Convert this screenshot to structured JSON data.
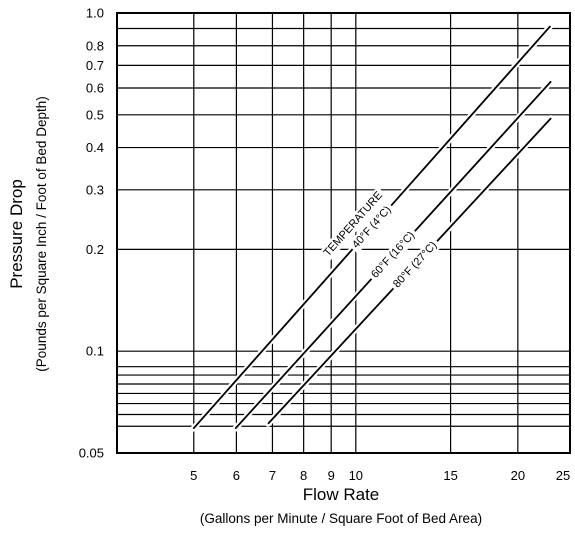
{
  "chart_data": {
    "type": "line",
    "xscale": "log",
    "yscale": "log",
    "xlim": [
      3.6,
      25
    ],
    "ylim": [
      0.05,
      1.0
    ],
    "x_ticks": [
      5,
      6,
      7,
      8,
      9,
      10,
      15,
      20,
      25
    ],
    "y_ticks": [
      0.05,
      0.1,
      0.2,
      0.3,
      0.4,
      0.5,
      0.6,
      0.7,
      0.8,
      1.0
    ],
    "y_tick_labels": [
      "0.05",
      "0.1",
      "0.2",
      "0.3",
      "0.4",
      "0.5",
      "0.6",
      "0.7",
      "0.8",
      "1.0"
    ],
    "grid": true,
    "xlabel": "Flow Rate",
    "xlabel_sub": "(Gallons per Minute / Square Foot of Bed Area)",
    "ylabel": "Pressure Drop",
    "ylabel_sub": "(Pounds per Square Inch / Foot of Bed Depth)",
    "annotation_header": "TEMPERATURE",
    "series": [
      {
        "name": "40°F (4°C)",
        "x": [
          4.99,
          22.99
        ],
        "y": [
          0.059,
          0.915
        ]
      },
      {
        "name": "60°F (16°C)",
        "x": [
          5.97,
          23.06
        ],
        "y": [
          0.059,
          0.628
        ]
      },
      {
        "name": "80°F (27°C)",
        "x": [
          6.87,
          23.06
        ],
        "y": [
          0.061,
          0.489
        ]
      }
    ]
  }
}
